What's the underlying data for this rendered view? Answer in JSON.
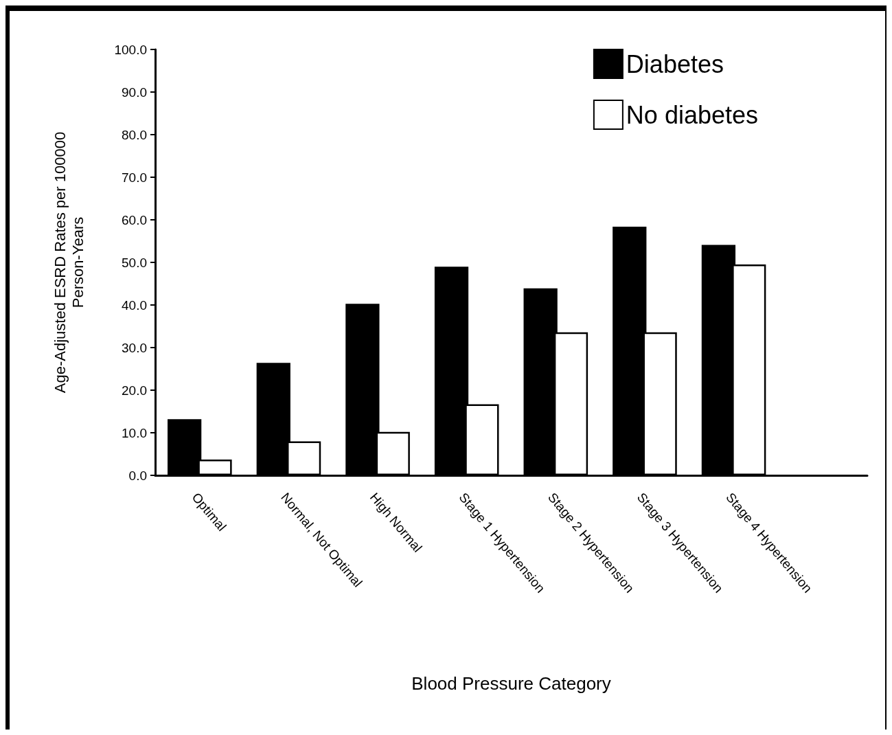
{
  "chart_data": {
    "type": "bar",
    "xlabel": "Blood Pressure Category",
    "ylabel": "Age-Adjusted ESRD Rates per 100000\nPerson-Years",
    "categories": [
      "Optimal",
      "Normal, Not Optimal",
      "High Normal",
      "Stage 1 Hypertension",
      "Stage 2 Hypertension",
      "Stage 3 Hypertension",
      "Stage 4 Hypertension",
      null
    ],
    "series": [
      {
        "name": "Diabetes",
        "color": "#000000",
        "values": [
          13.2,
          26.4,
          40.3,
          49.0,
          43.9,
          58.4,
          54.1,
          null
        ]
      },
      {
        "name": "No diabetes",
        "color": "#ffffff",
        "values": [
          3.7,
          8.0,
          10.2,
          16.7,
          33.6,
          33.6,
          49.5,
          null
        ]
      }
    ],
    "ylim": [
      0,
      100
    ],
    "yticks": [
      {
        "value": 0,
        "label": "0.0"
      },
      {
        "value": 10,
        "label": "10.0"
      },
      {
        "value": 20,
        "label": "20.0"
      },
      {
        "value": 30,
        "label": "30.0"
      },
      {
        "value": 40,
        "label": "40.0"
      },
      {
        "value": 50,
        "label": "50.0"
      },
      {
        "value": 60,
        "label": "60.0"
      },
      {
        "value": 70,
        "label": "70.0"
      },
      {
        "value": 80,
        "label": "80.0"
      },
      {
        "value": 90,
        "label": "90.0"
      },
      {
        "value": 100,
        "label": "100.0"
      }
    ],
    "grid": false,
    "legend": "top right"
  }
}
